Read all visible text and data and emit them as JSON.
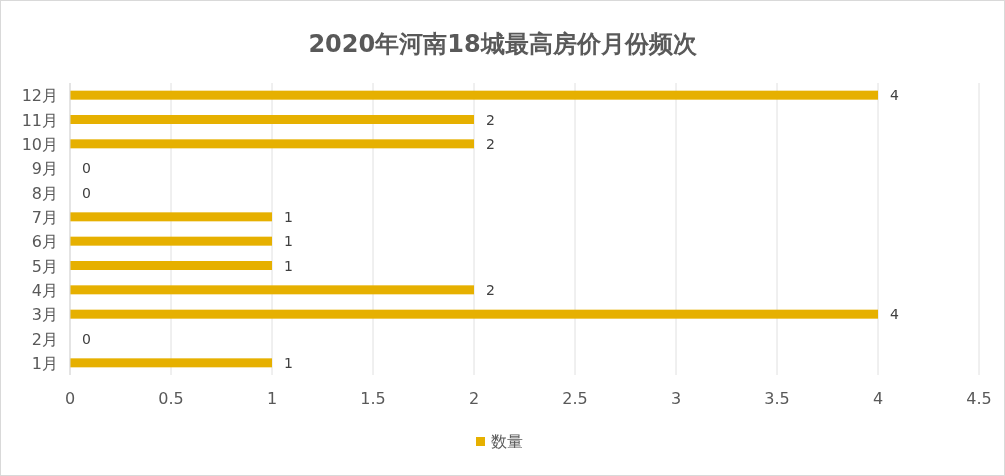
{
  "chart_data": {
    "type": "bar",
    "orientation": "horizontal",
    "title": "2020年河南18城最高房价月份频次",
    "categories": [
      "12月",
      "11月",
      "10月",
      "9月",
      "8月",
      "7月",
      "6月",
      "5月",
      "4月",
      "3月",
      "2月",
      "1月"
    ],
    "series": [
      {
        "name": "数量",
        "color": "#e6b000",
        "values": [
          4,
          2,
          2,
          0,
          0,
          1,
          1,
          1,
          2,
          4,
          0,
          1
        ]
      }
    ],
    "xlim": [
      0,
      4.5
    ],
    "xticks": [
      0,
      0.5,
      1,
      1.5,
      2,
      2.5,
      3,
      3.5,
      4,
      4.5
    ],
    "grid": "x",
    "data_labels": true,
    "legend": "bottom"
  }
}
